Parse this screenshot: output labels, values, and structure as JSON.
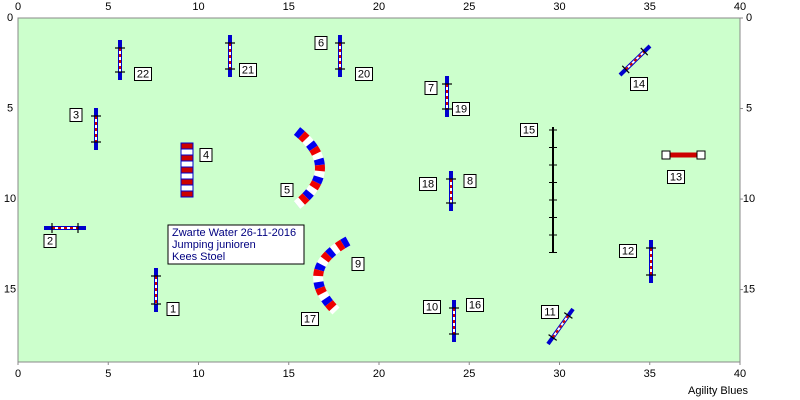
{
  "axes": {
    "xlim": [
      0,
      40
    ],
    "ylim": [
      0,
      19
    ],
    "xticks": [
      0,
      5,
      10,
      15,
      20,
      25,
      30,
      35,
      40
    ],
    "yticks": [
      0,
      5,
      10,
      15
    ]
  },
  "labels": [
    "1",
    "2",
    "3",
    "4",
    "5",
    "6",
    "7",
    "8",
    "9",
    "10",
    "11",
    "12",
    "13",
    "14",
    "15",
    "16",
    "17",
    "18",
    "19",
    "20",
    "21",
    "22"
  ],
  "info": [
    "Zwarte Water 26-11-2016",
    "Jumping junioren",
    "Kees Stoel"
  ],
  "footer": "Agility Blues"
}
